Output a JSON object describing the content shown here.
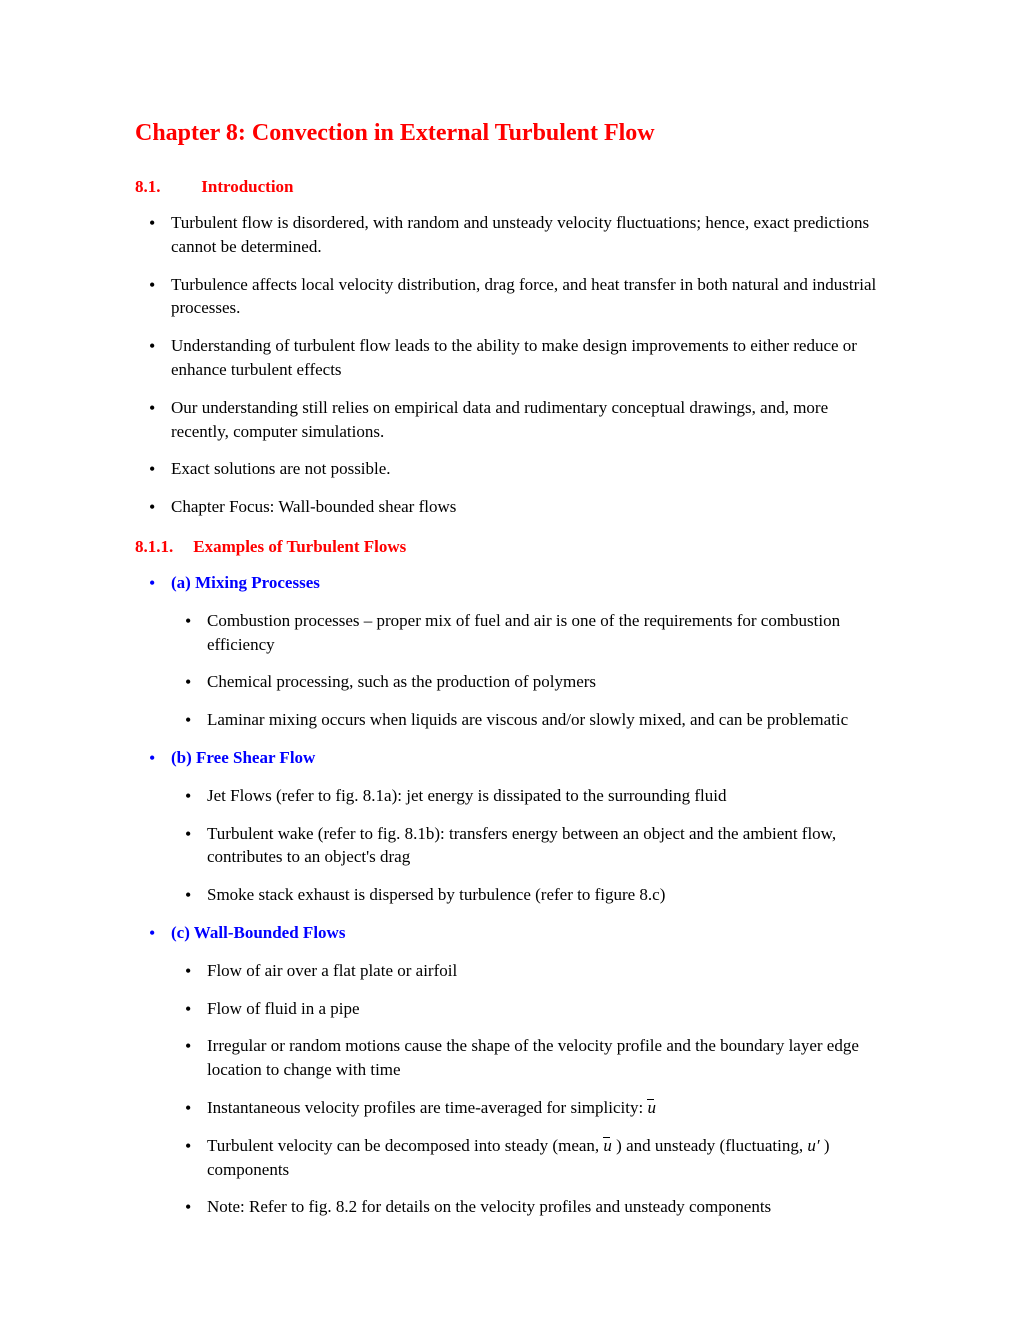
{
  "chapterTitle": "Chapter 8: Convection in External Turbulent Flow",
  "section1": {
    "number": "8.1.",
    "title": "Introduction",
    "bullets": [
      "Turbulent flow is disordered, with random and unsteady velocity fluctuations; hence, exact predictions cannot be determined.",
      "Turbulence affects local velocity distribution, drag force, and heat transfer in both natural and industrial processes.",
      "Understanding of turbulent flow leads to the ability to make design improvements to either reduce or enhance turbulent effects",
      "Our understanding still relies on empirical data and rudimentary conceptual drawings, and, more recently, computer simulations.",
      "Exact solutions are not possible.",
      "Chapter Focus: Wall-bounded shear flows"
    ]
  },
  "subsection1": {
    "number": "8.1.1.",
    "title": "Examples of Turbulent Flows",
    "groupA": {
      "heading": "(a) Mixing Processes",
      "bullets": [
        "Combustion processes – proper mix of fuel and air is one of the requirements for combustion efficiency",
        "Chemical processing, such as the production of polymers",
        "Laminar mixing occurs when liquids are viscous and/or slowly mixed, and can be problematic"
      ]
    },
    "groupB": {
      "heading": "(b) Free Shear Flow",
      "bullets": [
        "Jet Flows (refer to fig. 8.1a): jet energy is dissipated to the surrounding fluid",
        "Turbulent wake (refer to fig. 8.1b): transfers energy between an object and the ambient flow, contributes to an object's drag",
        "Smoke stack exhaust is dispersed by turbulence (refer to figure 8.c)"
      ]
    },
    "groupC": {
      "heading": "(c) Wall-Bounded Flows",
      "bullets": [
        "Flow of air over a flat plate or airfoil",
        "Flow of fluid in a pipe",
        "Irregular or random motions cause the shape of the velocity profile and the boundary layer edge location to change with time"
      ],
      "bullet4_prefix": "Instantaneous velocity profiles are time-averaged for simplicity: ",
      "bullet5_prefix": "Turbulent velocity can be decomposed into steady (mean, ",
      "bullet5_mid": " ) and unsteady (fluctuating, ",
      "bullet5_suffix": " ) components",
      "bullet6": "Note: Refer to fig. 8.2 for details on the velocity profiles and unsteady components"
    }
  },
  "mathSymbols": {
    "u": "u",
    "uPrime": "u′"
  },
  "colors": {
    "red": "#ff0000",
    "blue": "#0000ff",
    "black": "#000000",
    "background": "#ffffff"
  }
}
